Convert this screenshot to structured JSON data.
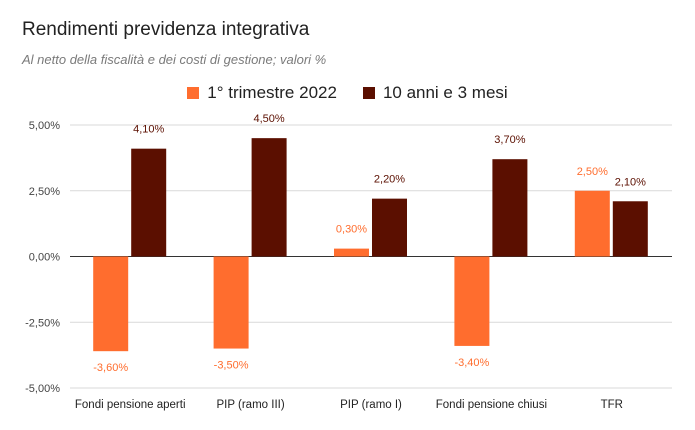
{
  "chart_data": {
    "type": "bar",
    "title": "Rendimenti previdenza integrativa",
    "subtitle": "Al netto della fiscalità e dei costi di gestione; valori %",
    "categories": [
      "Fondi pensione aperti",
      "PIP (ramo III)",
      "PIP (ramo I)",
      "Fondi pensione chiusi",
      "TFR"
    ],
    "series": [
      {
        "name": "1° trimestre 2022",
        "color": "#ff6d2e",
        "values": [
          -3.6,
          -3.5,
          0.3,
          -3.4,
          2.5
        ],
        "labels": [
          "-3,60%",
          "-3,50%",
          "0,30%",
          "-3,40%",
          "2,50%"
        ]
      },
      {
        "name": "10 anni e 3 mesi",
        "color": "#5b0f00",
        "values": [
          4.1,
          4.5,
          2.2,
          3.7,
          2.1
        ],
        "labels": [
          "4,10%",
          "4,50%",
          "2,20%",
          "3,70%",
          "2,10%"
        ]
      }
    ],
    "ylim": [
      -5,
      5
    ],
    "yticks": [
      5,
      2.5,
      0,
      -2.5,
      -5
    ],
    "ytick_labels": [
      "5,00%",
      "2,50%",
      "0,00%",
      "-2,50%",
      "-5,00%"
    ],
    "legend": "top-center",
    "grid": true
  }
}
